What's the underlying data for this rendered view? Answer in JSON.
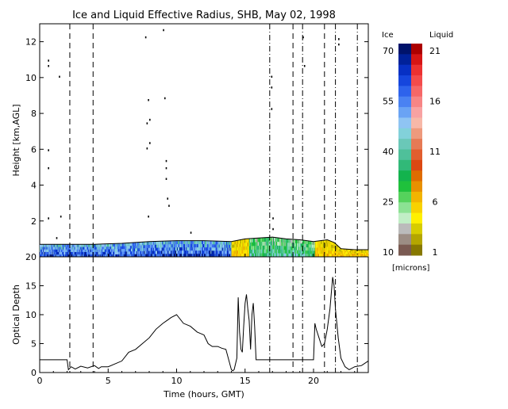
{
  "chart_data": [
    {
      "type": "heatmap",
      "title": "Ice and Liquid Effective Radius, SHB, May 02, 1998",
      "xlabel": "",
      "ylabel": "Height [km,AGL]",
      "xlim": [
        0,
        24
      ],
      "ylim": [
        0,
        13
      ],
      "yticks": [
        2,
        4,
        6,
        8,
        10,
        12
      ],
      "cloud_top_km": [
        [
          0,
          0.7
        ],
        [
          2,
          0.7
        ],
        [
          4,
          0.7
        ],
        [
          6,
          0.75
        ],
        [
          8,
          0.85
        ],
        [
          10,
          0.9
        ],
        [
          12,
          0.9
        ],
        [
          14,
          0.85
        ],
        [
          15,
          1.0
        ],
        [
          16,
          1.05
        ],
        [
          17,
          1.1
        ],
        [
          18,
          1.0
        ],
        [
          19,
          0.95
        ],
        [
          20,
          0.85
        ],
        [
          21,
          0.95
        ],
        [
          21.5,
          0.8
        ],
        [
          22,
          0.45
        ],
        [
          23,
          0.4
        ],
        [
          24,
          0.4
        ]
      ],
      "cloud_segments": [
        {
          "x_start": 0,
          "x_end": 14,
          "phase": "ice",
          "dominant_radius_microns": 60
        },
        {
          "x_start": 14,
          "x_end": 15.3,
          "phase": "liquid",
          "dominant_radius_microns": 6
        },
        {
          "x_start": 15.3,
          "x_end": 20.1,
          "phase": "ice",
          "dominant_radius_microns": 38
        },
        {
          "x_start": 20.1,
          "x_end": 24,
          "phase": "liquid",
          "dominant_radius_microns": 6
        }
      ]
    },
    {
      "type": "line",
      "title": "",
      "xlabel": "Time (hours, GMT)",
      "ylabel": "Optical Depth",
      "xlim": [
        0,
        24
      ],
      "ylim": [
        0,
        20
      ],
      "xticks": [
        0,
        5,
        10,
        15,
        20
      ],
      "yticks": [
        0,
        5,
        10,
        15,
        20
      ],
      "series": [
        {
          "x": [
            0,
            0.5,
            1,
            1.5,
            2,
            2.1,
            2.3,
            2.6,
            3,
            3.5,
            4,
            4.3,
            4.5,
            5,
            5.5,
            6,
            6.5,
            7,
            7.5,
            8,
            8.5,
            9,
            9.3,
            9.6,
            10,
            10.5,
            11,
            11.5,
            12,
            12.3,
            12.6,
            13,
            13.3,
            13.6,
            14,
            14.1,
            14.2,
            14.4,
            14.5,
            14.6,
            14.7,
            14.8,
            14.9,
            15.0,
            15.1,
            15.2,
            15.3,
            15.4,
            15.5,
            15.6,
            15.7,
            15.8,
            16,
            17,
            18,
            19,
            20,
            20.1,
            20.2,
            20.4,
            20.6,
            20.8,
            21.0,
            21.2,
            21.4,
            21.5,
            21.6,
            21.8,
            22,
            22.3,
            22.6,
            23,
            23.5,
            24
          ],
          "y": [
            2.2,
            2.2,
            2.2,
            2.2,
            2.2,
            0.5,
            1.0,
            0.6,
            1.1,
            0.8,
            1.2,
            0.7,
            1.0,
            1.0,
            1.5,
            2.0,
            3.5,
            4.0,
            5.0,
            6.0,
            7.5,
            8.5,
            9.0,
            9.5,
            10.0,
            8.5,
            8.0,
            7.0,
            6.5,
            5.0,
            4.5,
            4.5,
            4.2,
            4.0,
            0.5,
            0.3,
            0.5,
            2.5,
            13.0,
            7.0,
            4.0,
            3.5,
            8.0,
            12.0,
            13.5,
            11.0,
            9.0,
            4.0,
            10.0,
            12.0,
            8.0,
            2.2,
            2.2,
            2.2,
            2.2,
            2.2,
            2.2,
            8.5,
            7.5,
            6.0,
            4.5,
            5.0,
            7.5,
            11.0,
            16.5,
            15.0,
            11.0,
            6.0,
            2.5,
            1.0,
            0.5,
            1.0,
            1.2,
            2.0
          ]
        }
      ]
    }
  ],
  "vertical_markers": {
    "dashed_hours": [
      2.2,
      3.9,
      18.5,
      20.8
    ],
    "dash_dot_hours": [
      16.8,
      19.2,
      21.6,
      23.2
    ]
  },
  "colorbar": {
    "ice_label": "Ice",
    "liquid_label": "Liquid",
    "units_label": "[microns]",
    "ice_ticks": [
      "70",
      "55",
      "40",
      "25",
      "10"
    ],
    "liquid_ticks": [
      "21",
      "16",
      "11",
      "6",
      "1"
    ],
    "ice_colors": [
      "#00136b",
      "#00219a",
      "#0730c4",
      "#1646dd",
      "#2e63ec",
      "#4a82f2",
      "#6aa3f4",
      "#8fc4f3",
      "#82d1da",
      "#6ac8b8",
      "#4fc09a",
      "#31b978",
      "#13b34d",
      "#1fc13c",
      "#55d25c",
      "#8ce293",
      "#c1eec6",
      "#bbbbbb",
      "#9c8d84",
      "#7a5a52"
    ],
    "liquid_colors": [
      "#ac0000",
      "#d61515",
      "#ec3131",
      "#f44b4b",
      "#f66767",
      "#f78585",
      "#f8a2a2",
      "#f7b8a8",
      "#ee9a7d",
      "#e67a55",
      "#e15e2f",
      "#dc4812",
      "#df6c00",
      "#e89000",
      "#f2b400",
      "#f8d200",
      "#fff000",
      "#d7cd00",
      "#b4a600",
      "#877800"
    ]
  }
}
